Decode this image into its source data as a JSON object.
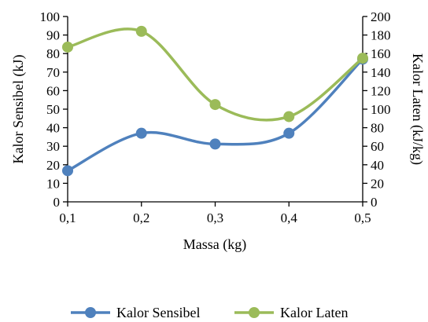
{
  "chart_data": {
    "type": "line",
    "x": [
      "0,1",
      "0,2",
      "0,3",
      "0,4",
      "0,5"
    ],
    "xlabel": "Massa (kg)",
    "ylabel_left": "Kalor Sensibel (kJ)",
    "ylabel_right": "Kalor Laten (kJ/kg)",
    "ylim_left": [
      0,
      100
    ],
    "ylim_right": [
      0,
      200
    ],
    "yticks_left": [
      "0",
      "10",
      "20",
      "30",
      "40",
      "50",
      "60",
      "70",
      "80",
      "90",
      "100"
    ],
    "yticks_right": [
      "0",
      "20",
      "40",
      "60",
      "80",
      "100",
      "120",
      "140",
      "160",
      "180",
      "200"
    ],
    "grid": false,
    "legend_position": "bottom",
    "series": [
      {
        "name": "Kalor Sensibel",
        "axis": "left",
        "color": "#4f81bd",
        "values": [
          16.8,
          37.0,
          31.2,
          37.0,
          77.0
        ]
      },
      {
        "name": "Kalor Laten",
        "axis": "right",
        "color": "#9bbb59",
        "values": [
          167,
          184,
          105,
          92,
          155
        ]
      }
    ]
  }
}
